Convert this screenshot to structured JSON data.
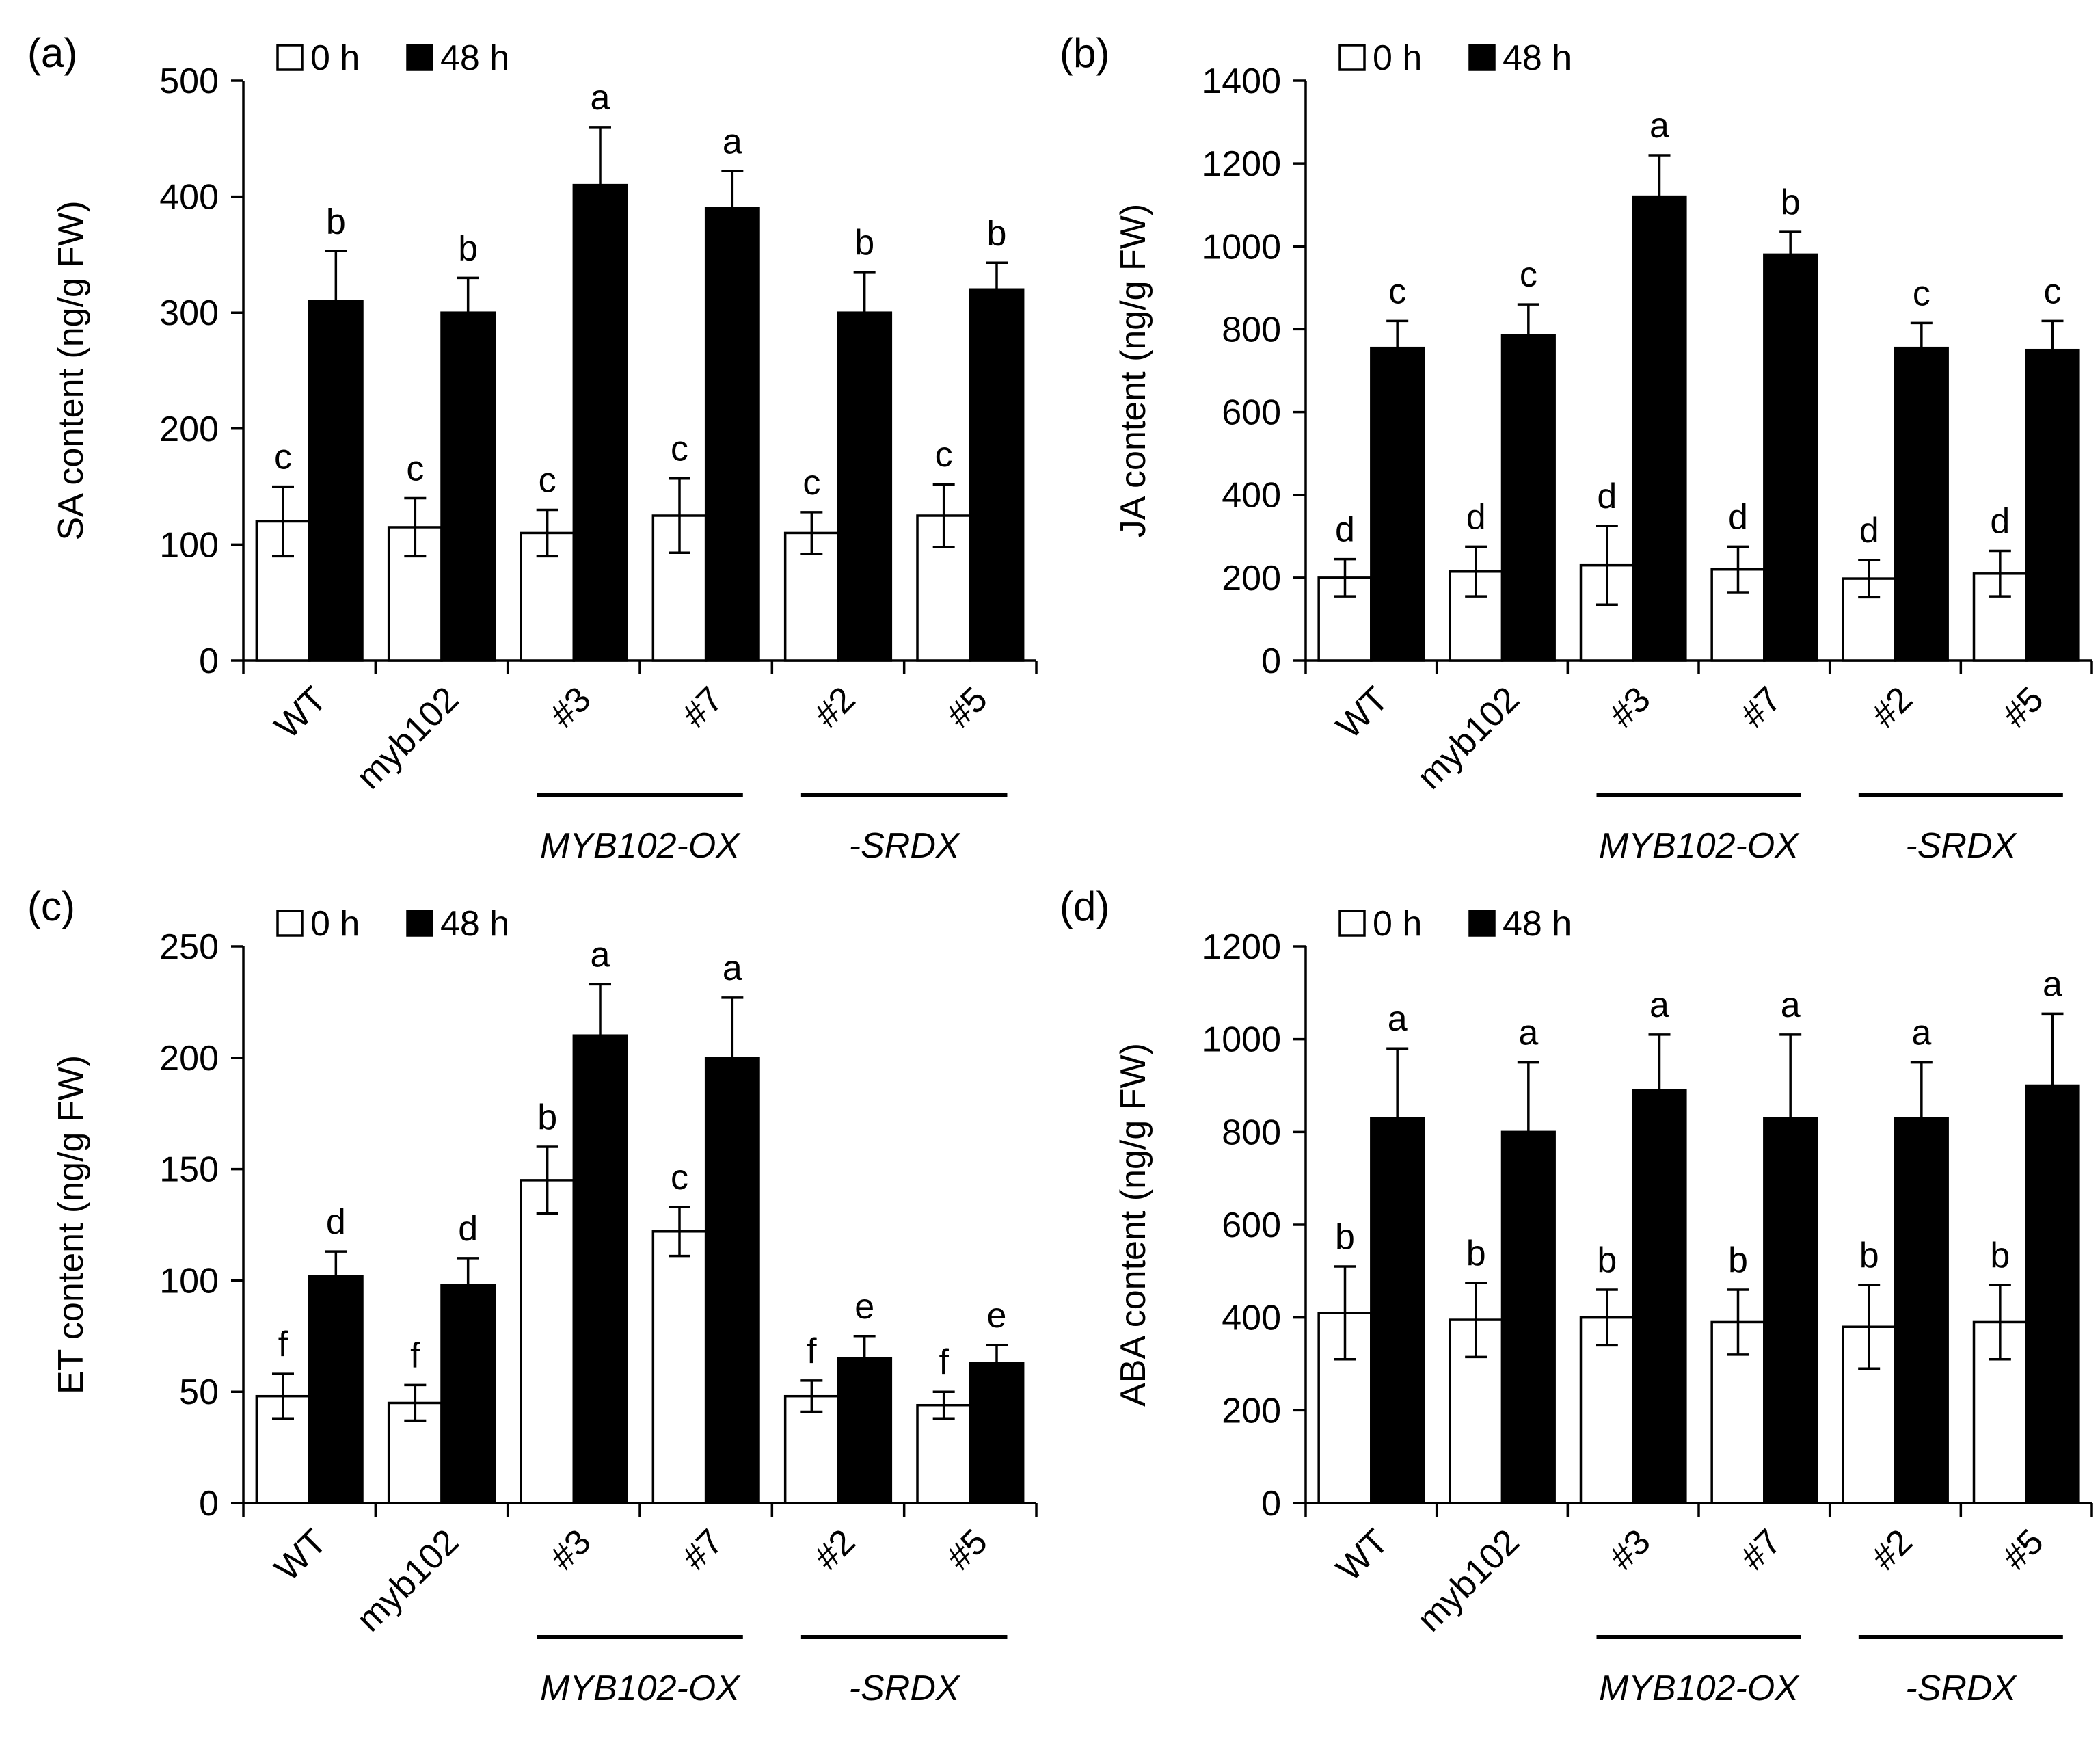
{
  "chart_data": [
    {
      "type": "bar",
      "panel_label": "(a)",
      "ylabel": "SA content (ng/g FW)",
      "ylim": [
        0,
        500
      ],
      "yticks": [
        0,
        100,
        200,
        300,
        400,
        500
      ],
      "categories": [
        "WT",
        "myb102",
        "#3",
        "#7",
        "#2",
        "#5"
      ],
      "groups": [
        {
          "label": "MYB102-OX",
          "categories": [
            "#3",
            "#7"
          ]
        },
        {
          "label": "-SRDX",
          "categories": [
            "#2",
            "#5"
          ]
        }
      ],
      "legend": {
        "position": "top-left",
        "entries": [
          "0 h",
          "48 h"
        ]
      },
      "series": [
        {
          "name": "0 h",
          "color": "#ffffff",
          "values": [
            120,
            115,
            110,
            125,
            110,
            125
          ],
          "errors": [
            30,
            25,
            20,
            32,
            18,
            27
          ],
          "letters": [
            "c",
            "c",
            "c",
            "c",
            "c",
            "c"
          ]
        },
        {
          "name": "48 h",
          "color": "#000000",
          "values": [
            310,
            300,
            410,
            390,
            300,
            320
          ],
          "errors": [
            43,
            30,
            50,
            32,
            35,
            23
          ],
          "letters": [
            "b",
            "b",
            "a",
            "a",
            "b",
            "b"
          ]
        }
      ]
    },
    {
      "type": "bar",
      "panel_label": "(b)",
      "ylabel": "JA content (ng/g FW)",
      "ylim": [
        0,
        1400
      ],
      "yticks": [
        0,
        200,
        400,
        600,
        800,
        1000,
        1200,
        1400
      ],
      "categories": [
        "WT",
        "myb102",
        "#3",
        "#7",
        "#2",
        "#5"
      ],
      "groups": [
        {
          "label": "MYB102-OX",
          "categories": [
            "#3",
            "#7"
          ]
        },
        {
          "label": "-SRDX",
          "categories": [
            "#2",
            "#5"
          ]
        }
      ],
      "legend": {
        "position": "top-left",
        "entries": [
          "0 h",
          "48 h"
        ]
      },
      "series": [
        {
          "name": "0 h",
          "color": "#ffffff",
          "values": [
            200,
            215,
            230,
            220,
            198,
            210
          ],
          "errors": [
            45,
            60,
            95,
            55,
            45,
            55
          ],
          "letters": [
            "d",
            "d",
            "d",
            "d",
            "d",
            "d"
          ]
        },
        {
          "name": "48 h",
          "color": "#000000",
          "values": [
            755,
            785,
            1120,
            980,
            755,
            750
          ],
          "errors": [
            65,
            75,
            100,
            55,
            60,
            70
          ],
          "letters": [
            "c",
            "c",
            "a",
            "b",
            "c",
            "c"
          ]
        }
      ]
    },
    {
      "type": "bar",
      "panel_label": "(c)",
      "ylabel": "ET content (ng/g FW)",
      "ylim": [
        0,
        250
      ],
      "yticks": [
        0,
        50,
        100,
        150,
        200,
        250
      ],
      "categories": [
        "WT",
        "myb102",
        "#3",
        "#7",
        "#2",
        "#5"
      ],
      "groups": [
        {
          "label": "MYB102-OX",
          "categories": [
            "#3",
            "#7"
          ]
        },
        {
          "label": "-SRDX",
          "categories": [
            "#2",
            "#5"
          ]
        }
      ],
      "legend": {
        "position": "top-left",
        "entries": [
          "0 h",
          "48 h"
        ]
      },
      "series": [
        {
          "name": "0 h",
          "color": "#ffffff",
          "values": [
            48,
            45,
            145,
            122,
            48,
            44
          ],
          "errors": [
            10,
            8,
            15,
            11,
            7,
            6
          ],
          "letters": [
            "f",
            "f",
            "b",
            "c",
            "f",
            "f"
          ]
        },
        {
          "name": "48 h",
          "color": "#000000",
          "values": [
            102,
            98,
            210,
            200,
            65,
            63
          ],
          "errors": [
            11,
            12,
            23,
            27,
            10,
            8
          ],
          "letters": [
            "d",
            "d",
            "a",
            "a",
            "e",
            "e"
          ]
        }
      ]
    },
    {
      "type": "bar",
      "panel_label": "(d)",
      "ylabel": "ABA content (ng/g FW)",
      "ylim": [
        0,
        1200
      ],
      "yticks": [
        0,
        200,
        400,
        600,
        800,
        1000,
        1200
      ],
      "categories": [
        "WT",
        "myb102",
        "#3",
        "#7",
        "#2",
        "#5"
      ],
      "groups": [
        {
          "label": "MYB102-OX",
          "categories": [
            "#3",
            "#7"
          ]
        },
        {
          "label": "-SRDX",
          "categories": [
            "#2",
            "#5"
          ]
        }
      ],
      "legend": {
        "position": "top-left",
        "entries": [
          "0 h",
          "48 h"
        ]
      },
      "series": [
        {
          "name": "0 h",
          "color": "#ffffff",
          "values": [
            410,
            395,
            400,
            390,
            380,
            390
          ],
          "errors": [
            100,
            80,
            60,
            70,
            90,
            80
          ],
          "letters": [
            "b",
            "b",
            "b",
            "b",
            "b",
            "b"
          ]
        },
        {
          "name": "48 h",
          "color": "#000000",
          "values": [
            830,
            800,
            890,
            830,
            830,
            900
          ],
          "errors": [
            150,
            150,
            120,
            180,
            120,
            155
          ],
          "letters": [
            "a",
            "a",
            "a",
            "a",
            "a",
            "a"
          ]
        }
      ]
    }
  ]
}
